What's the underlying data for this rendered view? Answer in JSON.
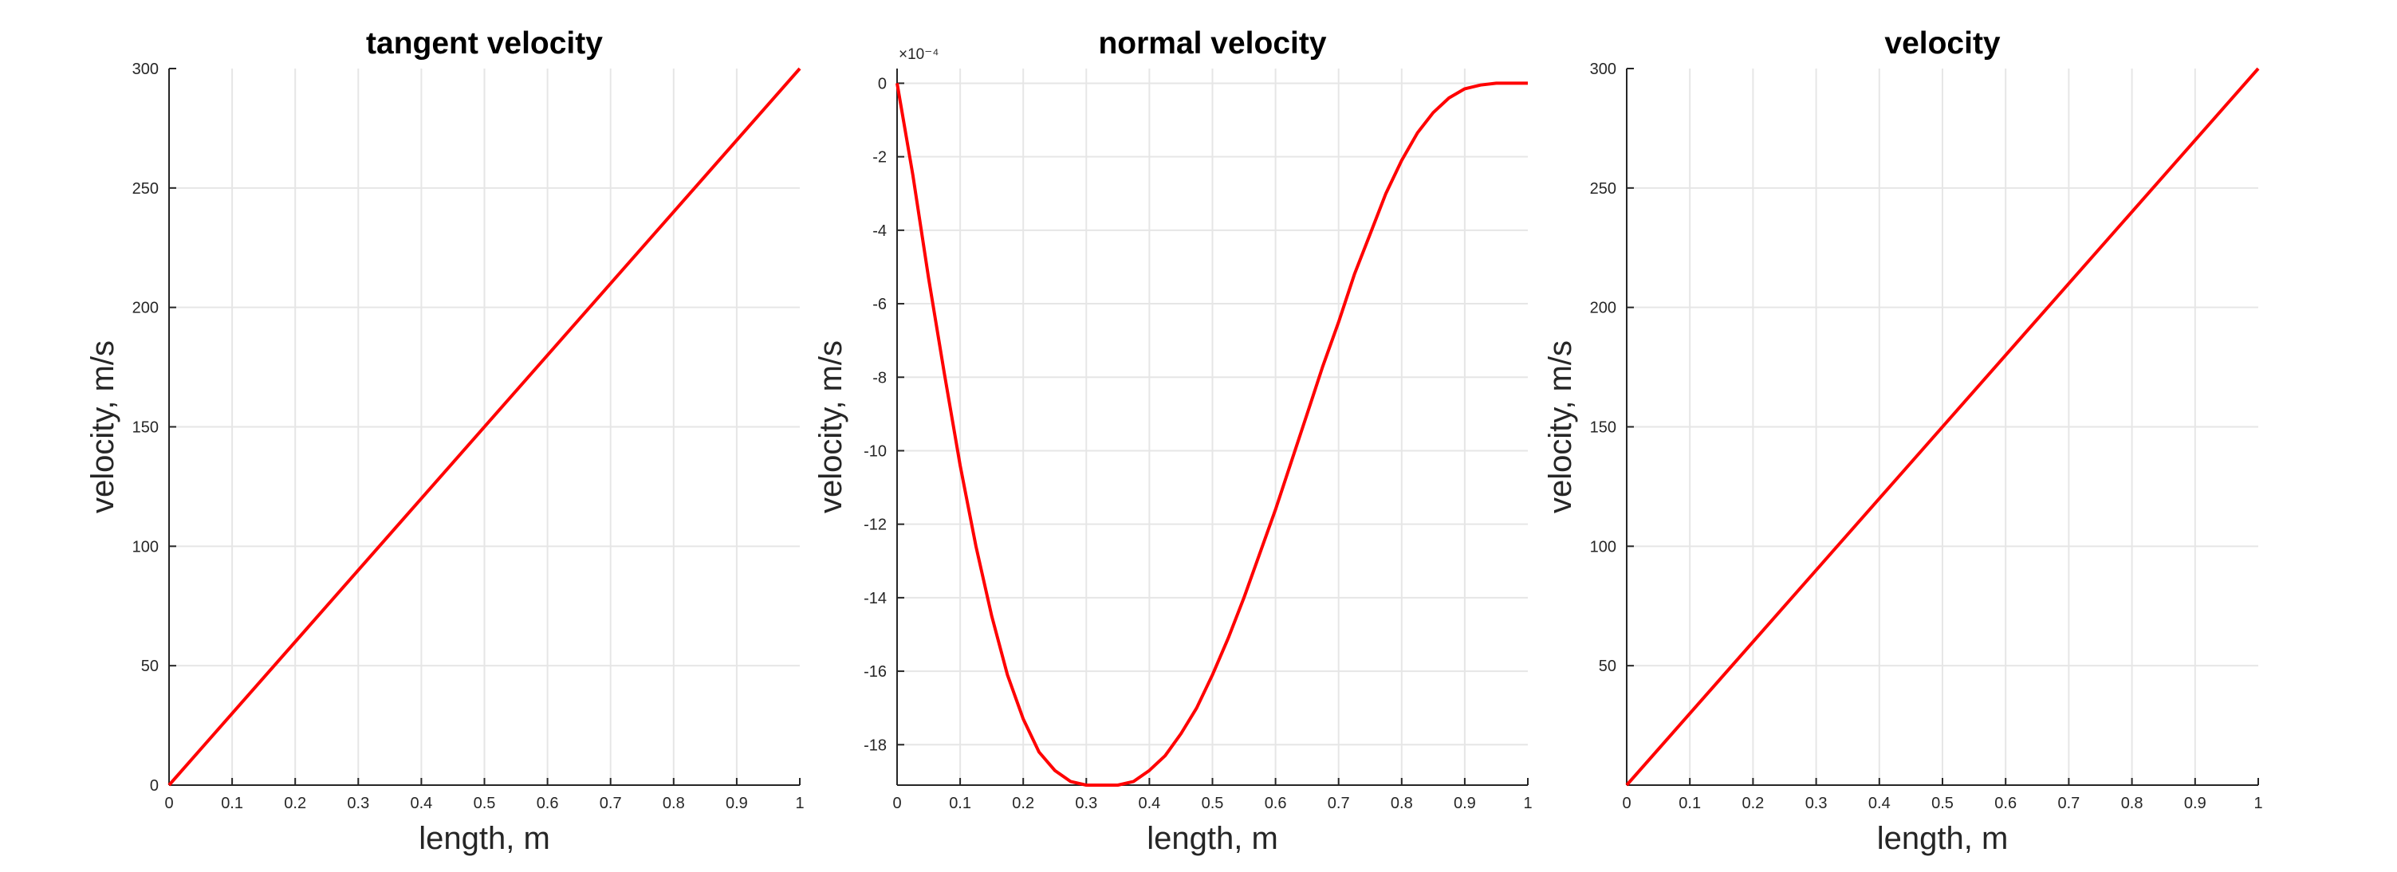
{
  "chart_data": [
    {
      "type": "line",
      "title": "tangent velocity",
      "xlabel": "length, m",
      "ylabel": "velocity, m/s",
      "xlim": [
        0,
        1
      ],
      "ylim": [
        0,
        300
      ],
      "grid": true,
      "x_ticks": [
        0,
        0.1,
        0.2,
        0.3,
        0.4,
        0.5,
        0.6,
        0.7,
        0.8,
        0.9,
        1
      ],
      "x_tick_labels": [
        "0",
        "0.1",
        "0.2",
        "0.3",
        "0.4",
        "0.5",
        "0.6",
        "0.7",
        "0.8",
        "0.9",
        "1"
      ],
      "y_ticks": [
        0,
        50,
        100,
        150,
        200,
        250,
        300
      ],
      "y_tick_labels": [
        "0",
        "50",
        "100",
        "150",
        "200",
        "250",
        "300"
      ],
      "y_exponent_label": "",
      "series": [
        {
          "color": "#ff0000",
          "x": [
            0,
            1
          ],
          "y": [
            0,
            300
          ]
        }
      ]
    },
    {
      "type": "line",
      "title": "normal velocity",
      "xlabel": "length, m",
      "ylabel": "velocity, m/s",
      "xlim": [
        0,
        1
      ],
      "ylim": [
        -19.1,
        0.4
      ],
      "grid": true,
      "x_ticks": [
        0,
        0.1,
        0.2,
        0.3,
        0.4,
        0.5,
        0.6,
        0.7,
        0.8,
        0.9,
        1
      ],
      "x_tick_labels": [
        "0",
        "0.1",
        "0.2",
        "0.3",
        "0.4",
        "0.5",
        "0.6",
        "0.7",
        "0.8",
        "0.9",
        "1"
      ],
      "y_ticks": [
        0,
        -2,
        -4,
        -6,
        -8,
        -10,
        -12,
        -14,
        -16,
        -18
      ],
      "y_tick_labels": [
        "0",
        "-2",
        "-4",
        "-6",
        "-8",
        "-10",
        "-12",
        "-14",
        "-16",
        "-18"
      ],
      "y_exponent_label": "×10⁻⁴",
      "series": [
        {
          "color": "#ff0000",
          "x": [
            0,
            0.025,
            0.05,
            0.075,
            0.1,
            0.125,
            0.15,
            0.175,
            0.2,
            0.225,
            0.25,
            0.275,
            0.3,
            0.325,
            0.35,
            0.375,
            0.4,
            0.425,
            0.45,
            0.475,
            0.5,
            0.525,
            0.55,
            0.575,
            0.6,
            0.625,
            0.65,
            0.675,
            0.7,
            0.725,
            0.75,
            0.775,
            0.8,
            0.825,
            0.85,
            0.875,
            0.9,
            0.925,
            0.95,
            0.975,
            1
          ],
          "y": [
            0.0,
            -2.5,
            -5.3,
            -7.9,
            -10.4,
            -12.6,
            -14.5,
            -16.1,
            -17.3,
            -18.2,
            -18.7,
            -19.0,
            -19.1,
            -19.1,
            -19.1,
            -19.0,
            -18.7,
            -18.3,
            -17.7,
            -17.0,
            -16.1,
            -15.1,
            -14.0,
            -12.8,
            -11.6,
            -10.3,
            -9.0,
            -7.7,
            -6.5,
            -5.2,
            -4.1,
            -3.0,
            -2.1,
            -1.35,
            -0.8,
            -0.4,
            -0.15,
            -0.05,
            0.0,
            0.0,
            0.0
          ]
        }
      ]
    },
    {
      "type": "line",
      "title": "velocity",
      "xlabel": "length, m",
      "ylabel": "velocity, m/s",
      "xlim": [
        0,
        1
      ],
      "ylim": [
        0,
        300
      ],
      "grid": true,
      "x_ticks": [
        0,
        0.1,
        0.2,
        0.3,
        0.4,
        0.5,
        0.6,
        0.7,
        0.8,
        0.9,
        1
      ],
      "x_tick_labels": [
        "0",
        "0.1",
        "0.2",
        "0.3",
        "0.4",
        "0.5",
        "0.6",
        "0.7",
        "0.8",
        "0.9",
        "1"
      ],
      "y_ticks": [
        50,
        100,
        150,
        200,
        250,
        300
      ],
      "y_tick_labels": [
        "50",
        "100",
        "150",
        "200",
        "250",
        "300"
      ],
      "y_exponent_label": "",
      "series": [
        {
          "color": "#ff0000",
          "x": [
            0,
            1
          ],
          "y": [
            0,
            300
          ]
        }
      ]
    }
  ]
}
